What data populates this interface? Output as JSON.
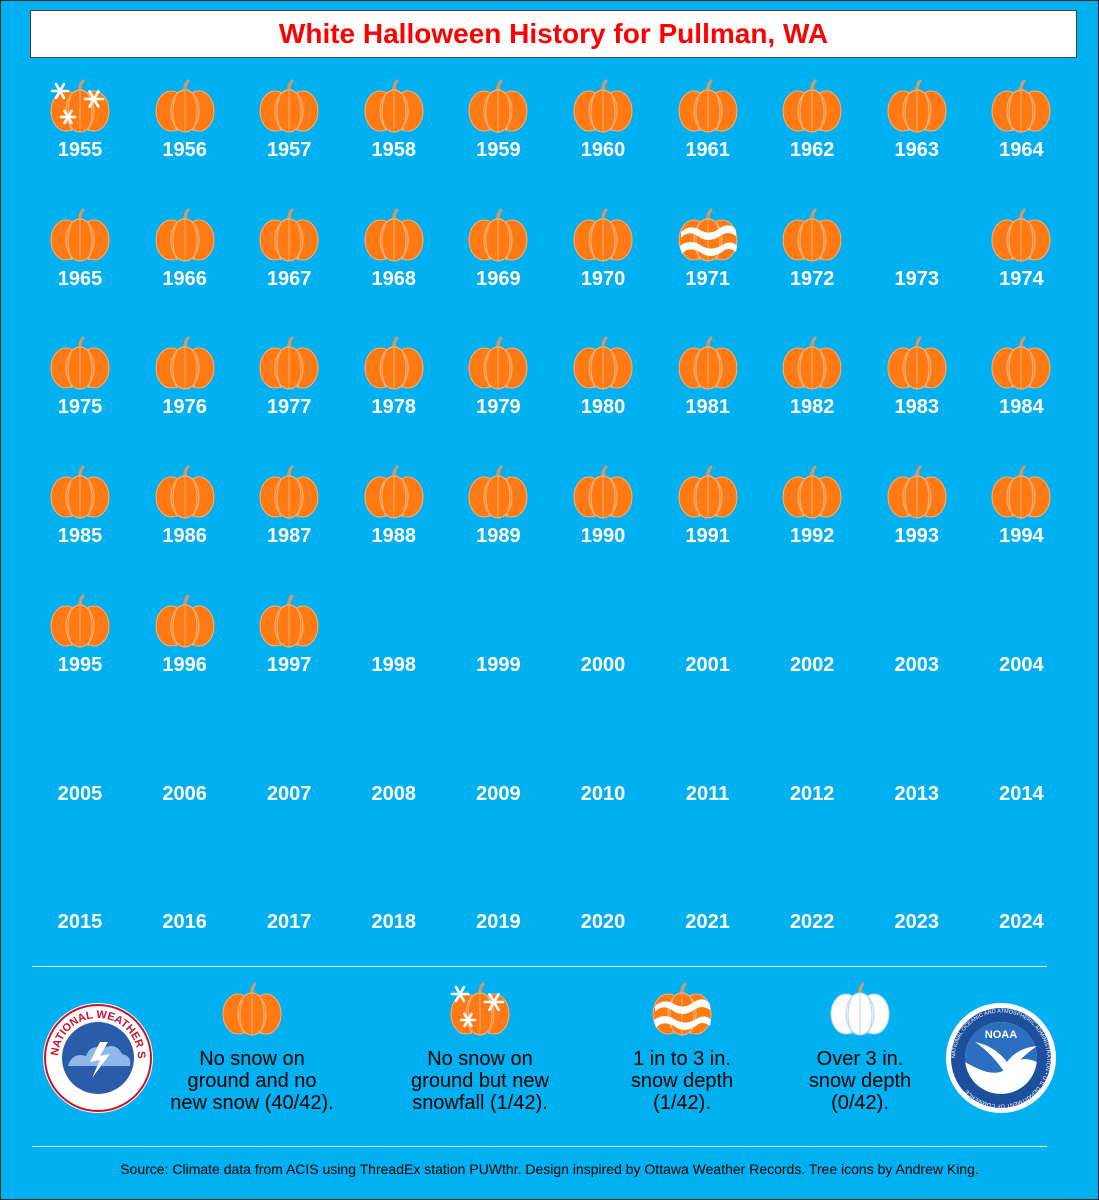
{
  "title": "White Halloween History for Pullman, WA",
  "colors": {
    "background": "#00b0f0",
    "title_text": "#ff0000",
    "pumpkin": "#ff7a14",
    "pumpkin_rib": "#ffb070",
    "stem": "#c89b72",
    "text": "#ffffff"
  },
  "years": [
    {
      "year": "1955",
      "status": "new-snow"
    },
    {
      "year": "1956",
      "status": "no-snow"
    },
    {
      "year": "1957",
      "status": "no-snow"
    },
    {
      "year": "1958",
      "status": "no-snow"
    },
    {
      "year": "1959",
      "status": "no-snow"
    },
    {
      "year": "1960",
      "status": "no-snow"
    },
    {
      "year": "1961",
      "status": "no-snow"
    },
    {
      "year": "1962",
      "status": "no-snow"
    },
    {
      "year": "1963",
      "status": "no-snow"
    },
    {
      "year": "1964",
      "status": "no-snow"
    },
    {
      "year": "1965",
      "status": "no-snow"
    },
    {
      "year": "1966",
      "status": "no-snow"
    },
    {
      "year": "1967",
      "status": "no-snow"
    },
    {
      "year": "1968",
      "status": "no-snow"
    },
    {
      "year": "1969",
      "status": "no-snow"
    },
    {
      "year": "1970",
      "status": "no-snow"
    },
    {
      "year": "1971",
      "status": "depth-1-3"
    },
    {
      "year": "1972",
      "status": "no-snow"
    },
    {
      "year": "1973",
      "status": "none"
    },
    {
      "year": "1974",
      "status": "no-snow"
    },
    {
      "year": "1975",
      "status": "no-snow"
    },
    {
      "year": "1976",
      "status": "no-snow"
    },
    {
      "year": "1977",
      "status": "no-snow"
    },
    {
      "year": "1978",
      "status": "no-snow"
    },
    {
      "year": "1979",
      "status": "no-snow"
    },
    {
      "year": "1980",
      "status": "no-snow"
    },
    {
      "year": "1981",
      "status": "no-snow"
    },
    {
      "year": "1982",
      "status": "no-snow"
    },
    {
      "year": "1983",
      "status": "no-snow"
    },
    {
      "year": "1984",
      "status": "no-snow"
    },
    {
      "year": "1985",
      "status": "no-snow"
    },
    {
      "year": "1986",
      "status": "no-snow"
    },
    {
      "year": "1987",
      "status": "no-snow"
    },
    {
      "year": "1988",
      "status": "no-snow"
    },
    {
      "year": "1989",
      "status": "no-snow"
    },
    {
      "year": "1990",
      "status": "no-snow"
    },
    {
      "year": "1991",
      "status": "no-snow"
    },
    {
      "year": "1992",
      "status": "no-snow"
    },
    {
      "year": "1993",
      "status": "no-snow"
    },
    {
      "year": "1994",
      "status": "no-snow"
    },
    {
      "year": "1995",
      "status": "no-snow"
    },
    {
      "year": "1996",
      "status": "no-snow"
    },
    {
      "year": "1997",
      "status": "no-snow"
    },
    {
      "year": "1998",
      "status": "none"
    },
    {
      "year": "1999",
      "status": "none"
    },
    {
      "year": "2000",
      "status": "none"
    },
    {
      "year": "2001",
      "status": "none"
    },
    {
      "year": "2002",
      "status": "none"
    },
    {
      "year": "2003",
      "status": "none"
    },
    {
      "year": "2004",
      "status": "none"
    },
    {
      "year": "2005",
      "status": "none"
    },
    {
      "year": "2006",
      "status": "none"
    },
    {
      "year": "2007",
      "status": "none"
    },
    {
      "year": "2008",
      "status": "none"
    },
    {
      "year": "2009",
      "status": "none"
    },
    {
      "year": "2010",
      "status": "none"
    },
    {
      "year": "2011",
      "status": "none"
    },
    {
      "year": "2012",
      "status": "none"
    },
    {
      "year": "2013",
      "status": "none"
    },
    {
      "year": "2014",
      "status": "none"
    },
    {
      "year": "2015",
      "status": "none"
    },
    {
      "year": "2016",
      "status": "none"
    },
    {
      "year": "2017",
      "status": "none"
    },
    {
      "year": "2018",
      "status": "none"
    },
    {
      "year": "2019",
      "status": "none"
    },
    {
      "year": "2020",
      "status": "none"
    },
    {
      "year": "2021",
      "status": "none"
    },
    {
      "year": "2022",
      "status": "none"
    },
    {
      "year": "2023",
      "status": "none"
    },
    {
      "year": "2024",
      "status": "none"
    }
  ],
  "legend": [
    {
      "status": "no-snow",
      "lines": [
        "No snow on",
        "ground and no",
        "new snow (40/42)."
      ]
    },
    {
      "status": "new-snow",
      "lines": [
        "No snow on",
        "ground but new",
        "snowfall (1/42)."
      ]
    },
    {
      "status": "depth-1-3",
      "lines": [
        "1 in to 3 in.",
        "snow depth",
        "(1/42)."
      ]
    },
    {
      "status": "depth-over-3",
      "lines": [
        "Over 3 in.",
        "snow depth",
        "(0/42)."
      ]
    }
  ],
  "logos": {
    "nws_text": "NATIONAL WEATHER SERVICE",
    "noaa_text": "NOAA",
    "noaa_ring_text": "NATIONAL OCEANIC AND ATMOSPHERIC ADMINISTRATION • U.S. DEPARTMENT OF COMMERCE"
  },
  "source": "Source: Climate data from ACIS using ThreadEx station PUWthr. Design inspired by Ottawa Weather Records. Tree icons by Andrew King."
}
